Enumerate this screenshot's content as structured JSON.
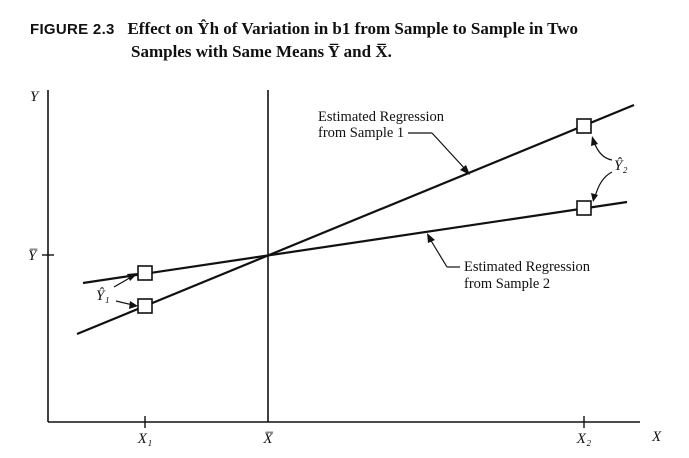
{
  "figure": {
    "label": "FIGURE 2.3",
    "title_line1": "Effect on Ŷh of Variation in b1 from Sample to Sample in Two",
    "title_line2": "Samples with Same Means Y̅ and X̅."
  },
  "axes": {
    "y_label": "Y",
    "x_label": "X",
    "y_tick": "Y̅",
    "x_ticks": [
      "X₁",
      "X̅",
      "X₂"
    ]
  },
  "annotations": {
    "sample1_line1": "Estimated Regression",
    "sample1_line2": "from Sample 1",
    "sample2_line1": "Estimated Regression",
    "sample2_line2": "from Sample 2",
    "y_hat_1": "Ŷ₁",
    "y_hat_2": "Ŷ₂"
  }
}
